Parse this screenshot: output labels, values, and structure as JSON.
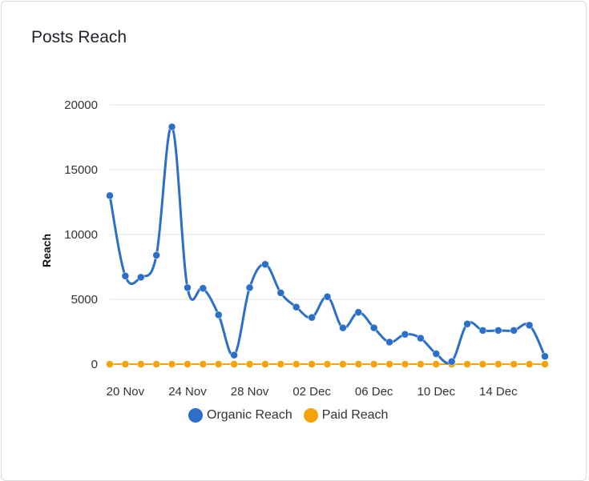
{
  "card": {
    "title": "Posts Reach"
  },
  "chart_data": {
    "type": "line",
    "title": "Posts Reach",
    "xlabel": "",
    "ylabel": "Reach",
    "ylim": [
      0,
      20000
    ],
    "yticks": [
      0,
      5000,
      10000,
      15000,
      20000
    ],
    "x": [
      "19 Nov",
      "20 Nov",
      "21 Nov",
      "22 Nov",
      "23 Nov",
      "24 Nov",
      "25 Nov",
      "26 Nov",
      "27 Nov",
      "28 Nov",
      "29 Nov",
      "30 Nov",
      "01 Dec",
      "02 Dec",
      "03 Dec",
      "04 Dec",
      "05 Dec",
      "06 Dec",
      "07 Dec",
      "08 Dec",
      "09 Dec",
      "10 Dec",
      "11 Dec",
      "12 Dec",
      "13 Dec",
      "14 Dec",
      "15 Dec",
      "16 Dec",
      "17 Dec"
    ],
    "xtick_labels": [
      "20 Nov",
      "24 Nov",
      "28 Nov",
      "02 Dec",
      "06 Dec",
      "10 Dec",
      "14 Dec"
    ],
    "series": [
      {
        "name": "Organic Reach",
        "color": "#2b6fc9",
        "values": [
          13000,
          6800,
          6700,
          8400,
          18300,
          5900,
          5850,
          3800,
          700,
          5900,
          7700,
          5500,
          4400,
          3600,
          5200,
          2800,
          4000,
          2800,
          1700,
          2300,
          2000,
          800,
          200,
          3100,
          2600,
          2600,
          2600,
          3000,
          600
        ]
      },
      {
        "name": "Paid Reach",
        "color": "#f5a30b",
        "values": [
          0,
          0,
          0,
          0,
          0,
          0,
          0,
          0,
          0,
          0,
          0,
          0,
          0,
          0,
          0,
          0,
          0,
          0,
          0,
          0,
          0,
          0,
          0,
          0,
          0,
          0,
          0,
          0,
          0
        ]
      }
    ],
    "grid": true,
    "legend": "bottom"
  }
}
